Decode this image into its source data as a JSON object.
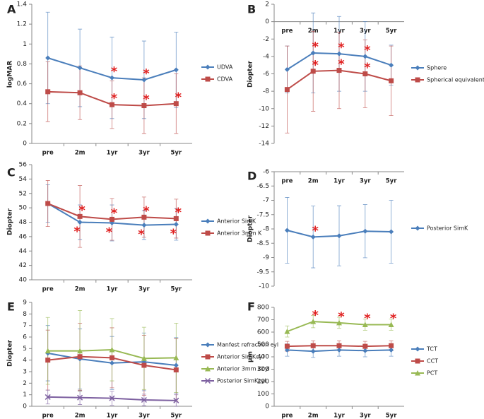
{
  "chart_data": [
    {
      "type": "line",
      "label": "A",
      "ylabel": "logMAR",
      "categories": [
        "pre",
        "2m",
        "1yr",
        "3yr",
        "5yr"
      ],
      "ylim": [
        0,
        1.4
      ],
      "yticks": [
        0,
        0.2,
        0.4,
        0.6,
        0.8,
        1,
        1.2,
        1.4
      ],
      "x_axis": "bottom",
      "series": [
        {
          "name": "UDVA",
          "color": "#4a7ebb",
          "marker": "diamond",
          "values": [
            0.86,
            0.76,
            0.66,
            0.64,
            0.74
          ],
          "errors": [
            0.46,
            0.39,
            0.41,
            0.39,
            0.38
          ],
          "significance": [
            null,
            null,
            "*",
            "*",
            null
          ]
        },
        {
          "name": "CDVA",
          "color": "#be4b48",
          "marker": "square",
          "values": [
            0.52,
            0.51,
            0.39,
            0.38,
            0.4
          ],
          "errors": [
            0.3,
            0.27,
            0.24,
            0.28,
            0.3
          ],
          "significance": [
            null,
            null,
            "*",
            "*",
            "*"
          ]
        }
      ]
    },
    {
      "type": "line",
      "label": "B",
      "ylabel": "Diopter",
      "categories": [
        "pre",
        "2m",
        "1yr",
        "3yr",
        "5yr"
      ],
      "ylim": [
        -14,
        2
      ],
      "yticks": [
        -14,
        -12,
        -10,
        -8,
        -6,
        -4,
        -2,
        0,
        2
      ],
      "x_axis": "zero",
      "series": [
        {
          "name": "Sphere",
          "color": "#4a7ebb",
          "marker": "diamond",
          "values": [
            -5.5,
            -3.6,
            -3.7,
            -4.0,
            -5.0
          ],
          "errors": [
            2.7,
            4.6,
            4.3,
            4.0,
            2.3
          ],
          "significance": [
            null,
            "*",
            "*",
            "*",
            null
          ]
        },
        {
          "name": "Spherical equivalent",
          "color": "#be4b48",
          "marker": "square",
          "values": [
            -7.8,
            -5.7,
            -5.6,
            -6.0,
            -6.8
          ],
          "errors": [
            5.0,
            4.6,
            4.4,
            3.9,
            4.0
          ],
          "significance": [
            null,
            "*",
            "*",
            "*",
            null
          ]
        }
      ]
    },
    {
      "type": "line",
      "label": "C",
      "ylabel": "Diopter",
      "categories": [
        "pre",
        "2m",
        "1yr",
        "3yr",
        "5yr"
      ],
      "ylim": [
        40,
        56
      ],
      "yticks": [
        40,
        42,
        44,
        46,
        48,
        50,
        52,
        54,
        56
      ],
      "x_axis": "bottom",
      "series": [
        {
          "name": "Anterior SimK",
          "color": "#4a7ebb",
          "marker": "diamond",
          "values": [
            50.6,
            48.0,
            47.9,
            47.6,
            47.7
          ],
          "errors": [
            2.6,
            2.4,
            2.5,
            2.0,
            2.2
          ],
          "significance": [
            null,
            "*",
            "*",
            "*",
            "*"
          ]
        },
        {
          "name": "Anterior 3mm K",
          "color": "#be4b48",
          "marker": "square",
          "values": [
            50.6,
            48.8,
            48.4,
            48.7,
            48.5
          ],
          "errors": [
            3.2,
            4.3,
            2.9,
            2.8,
            2.7
          ],
          "significance": [
            null,
            "*",
            "*",
            "*",
            "*"
          ]
        }
      ]
    },
    {
      "type": "line",
      "label": "D",
      "ylabel": "Diopter",
      "categories": [
        "pre",
        "2m",
        "1yr",
        "3yr",
        "5yr"
      ],
      "ylim": [
        -10,
        -6
      ],
      "yticks": [
        -10,
        -9.5,
        -9,
        -8.5,
        -8,
        -7.5,
        -7,
        -6.5,
        -6
      ],
      "x_axis": "top",
      "series": [
        {
          "name": "Posterior SimK",
          "color": "#4a7ebb",
          "marker": "diamond",
          "values": [
            -8.05,
            -8.28,
            -8.24,
            -8.08,
            -8.1
          ],
          "errors": [
            1.15,
            1.08,
            1.05,
            0.93,
            1.1
          ],
          "significance": [
            null,
            "*",
            null,
            null,
            null
          ]
        }
      ]
    },
    {
      "type": "line",
      "label": "E",
      "ylabel": "Diopter",
      "categories": [
        "pre",
        "2m",
        "1yr",
        "3yr",
        "5yr"
      ],
      "ylim": [
        0,
        9
      ],
      "yticks": [
        0,
        1,
        2,
        3,
        4,
        5,
        6,
        7,
        8,
        9
      ],
      "x_axis": "bottom",
      "series": [
        {
          "name": "Manfest refraction cyl",
          "color": "#4a7ebb",
          "marker": "diamond",
          "values": [
            4.6,
            4.1,
            3.75,
            3.85,
            3.55
          ],
          "errors": [
            2.4,
            2.6,
            2.3,
            2.5,
            2.4
          ],
          "significance": [
            null,
            null,
            null,
            null,
            null
          ]
        },
        {
          "name": "Anterior SimKcyl",
          "color": "#be4b48",
          "marker": "square",
          "values": [
            4.0,
            4.3,
            4.2,
            3.55,
            3.15
          ],
          "errors": [
            2.6,
            2.9,
            2.6,
            2.6,
            2.7
          ],
          "significance": [
            null,
            null,
            null,
            null,
            null
          ]
        },
        {
          "name": "Anterior 3mm Kcyl",
          "color": "#98b954",
          "marker": "triangle",
          "values": [
            4.8,
            4.8,
            4.9,
            4.15,
            4.2
          ],
          "errors": [
            2.9,
            3.5,
            2.7,
            2.7,
            3.0
          ],
          "significance": [
            null,
            null,
            null,
            null,
            null
          ]
        },
        {
          "name": "Posterior SimKcyl",
          "color": "#7d60a0",
          "marker": "x",
          "values": [
            0.8,
            0.75,
            0.7,
            0.55,
            0.5
          ],
          "errors": [
            0.6,
            0.6,
            0.6,
            0.5,
            0.5
          ],
          "significance": [
            null,
            null,
            null,
            null,
            null
          ]
        }
      ]
    },
    {
      "type": "line",
      "label": "F",
      "ylabel": "μm",
      "categories": [
        "pre",
        "2m",
        "1yr",
        "3yr",
        "5yr"
      ],
      "ylim": [
        0,
        800
      ],
      "yticks": [
        0,
        100,
        200,
        300,
        400,
        500,
        600,
        700,
        800
      ],
      "x_axis": "bottom",
      "series": [
        {
          "name": "TCT",
          "color": "#4a7ebb",
          "marker": "diamond",
          "values": [
            455,
            445,
            455,
            450,
            455
          ],
          "errors": [
            50,
            50,
            50,
            50,
            50
          ],
          "significance": [
            null,
            null,
            null,
            null,
            null
          ]
        },
        {
          "name": "CCT",
          "color": "#be4b48",
          "marker": "square",
          "values": [
            485,
            490,
            490,
            485,
            490
          ],
          "errors": [
            40,
            40,
            40,
            40,
            40
          ],
          "significance": [
            null,
            null,
            null,
            null,
            null
          ]
        },
        {
          "name": "PCT",
          "color": "#98b954",
          "marker": "triangle",
          "values": [
            605,
            685,
            675,
            660,
            660
          ],
          "errors": [
            45,
            50,
            45,
            45,
            45
          ],
          "significance": [
            null,
            "*",
            "*",
            "*",
            "*"
          ]
        }
      ]
    }
  ]
}
